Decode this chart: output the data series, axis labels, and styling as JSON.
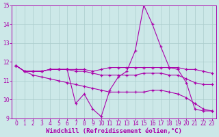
{
  "background_color": "#cce8e8",
  "grid_color": "#aacccc",
  "line_color": "#aa00aa",
  "xlim": [
    -0.5,
    23.5
  ],
  "ylim": [
    9,
    15
  ],
  "yticks": [
    9,
    10,
    11,
    12,
    13,
    14,
    15
  ],
  "xticks": [
    0,
    1,
    2,
    3,
    4,
    5,
    6,
    7,
    8,
    9,
    10,
    11,
    12,
    13,
    14,
    15,
    16,
    17,
    18,
    19,
    20,
    21,
    22,
    23
  ],
  "xlabel": "Windchill (Refroidissement éolien,°C)",
  "lines": [
    {
      "x": [
        0,
        1,
        2,
        3,
        4,
        5,
        6,
        7,
        8,
        9,
        10,
        11,
        12,
        13,
        14,
        15,
        16,
        17,
        18,
        19,
        20,
        21,
        22,
        23
      ],
      "y": [
        11.8,
        11.5,
        11.5,
        11.5,
        11.6,
        11.6,
        11.6,
        9.8,
        10.3,
        9.5,
        9.1,
        10.5,
        11.2,
        11.5,
        12.6,
        15.0,
        14.0,
        12.8,
        11.7,
        11.6,
        10.9,
        9.5,
        9.4,
        9.4
      ]
    },
    {
      "x": [
        0,
        1,
        2,
        3,
        4,
        5,
        6,
        7,
        8,
        9,
        10,
        11,
        12,
        13,
        14,
        15,
        16,
        17,
        18,
        19,
        20,
        21,
        22,
        23
      ],
      "y": [
        11.8,
        11.5,
        11.5,
        11.5,
        11.6,
        11.6,
        11.6,
        11.6,
        11.6,
        11.5,
        11.6,
        11.7,
        11.7,
        11.7,
        11.7,
        11.7,
        11.7,
        11.7,
        11.7,
        11.7,
        11.6,
        11.6,
        11.5,
        11.4
      ]
    },
    {
      "x": [
        0,
        1,
        2,
        3,
        4,
        5,
        6,
        7,
        8,
        9,
        10,
        11,
        12,
        13,
        14,
        15,
        16,
        17,
        18,
        19,
        20,
        21,
        22,
        23
      ],
      "y": [
        11.8,
        11.5,
        11.5,
        11.5,
        11.6,
        11.6,
        11.6,
        11.5,
        11.5,
        11.4,
        11.3,
        11.3,
        11.3,
        11.3,
        11.3,
        11.4,
        11.4,
        11.4,
        11.3,
        11.3,
        11.1,
        10.9,
        10.8,
        10.8
      ]
    },
    {
      "x": [
        0,
        1,
        2,
        3,
        4,
        5,
        6,
        7,
        8,
        9,
        10,
        11,
        12,
        13,
        14,
        15,
        16,
        17,
        18,
        19,
        20,
        21,
        22,
        23
      ],
      "y": [
        11.8,
        11.5,
        11.3,
        11.2,
        11.1,
        11.0,
        10.9,
        10.8,
        10.7,
        10.6,
        10.5,
        10.4,
        10.4,
        10.4,
        10.4,
        10.4,
        10.5,
        10.5,
        10.4,
        10.3,
        10.1,
        9.8,
        9.5,
        9.4
      ]
    }
  ],
  "tick_font_size": 5.5,
  "xlabel_font_size": 6.5
}
